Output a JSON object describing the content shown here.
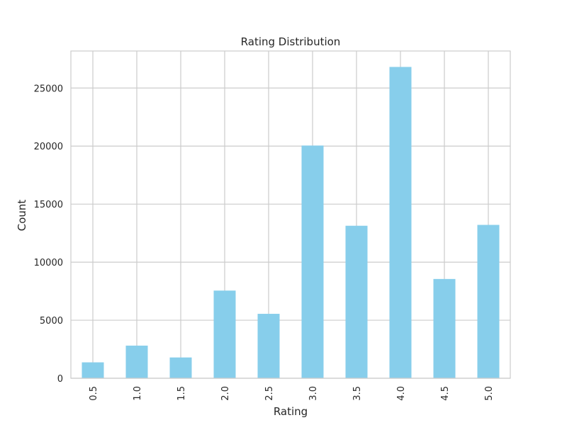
{
  "chart_data": {
    "type": "bar",
    "title": "Rating Distribution",
    "xlabel": "Rating",
    "ylabel": "Count",
    "categories": [
      "0.5",
      "1.0",
      "1.5",
      "2.0",
      "2.5",
      "3.0",
      "3.5",
      "4.0",
      "4.5",
      "5.0"
    ],
    "values": [
      1370,
      2811,
      1791,
      7551,
      5550,
      20047,
      13136,
      26818,
      8551,
      13211
    ],
    "ylim": [
      0,
      28190
    ],
    "yticks": [
      0,
      5000,
      10000,
      15000,
      20000,
      25000
    ],
    "grid": true,
    "bar_color": "#87ceeb",
    "grid_color": "#cccccc",
    "spine_color": "#cccccc"
  }
}
